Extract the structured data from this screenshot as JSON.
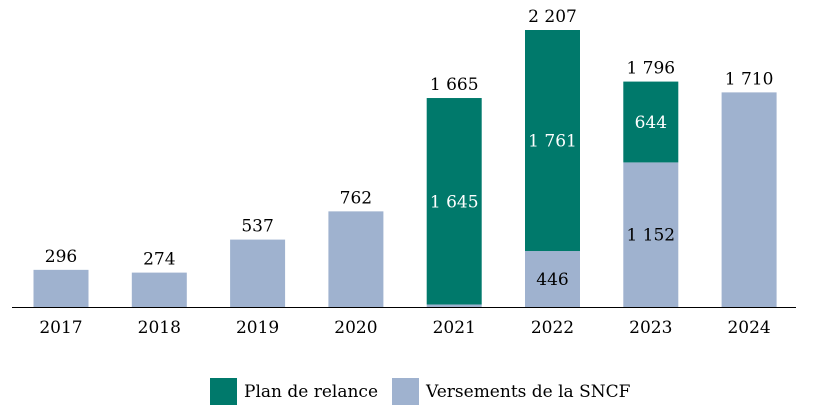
{
  "colors": {
    "plan_de_relance": "#00796b",
    "versements_sncf": "#9fb2cf"
  },
  "chart_data": {
    "type": "bar",
    "stacked": true,
    "categories": [
      "2017",
      "2018",
      "2019",
      "2020",
      "2021",
      "2022",
      "2023",
      "2024"
    ],
    "series": [
      {
        "name": "Versements de la SNCF",
        "values": [
          296,
          274,
          537,
          762,
          20,
          446,
          1152,
          1710
        ]
      },
      {
        "name": "Plan de relance",
        "values": [
          0,
          0,
          0,
          0,
          1645,
          1761,
          644,
          0
        ]
      }
    ],
    "totals": [
      296,
      274,
      537,
      762,
      1665,
      2207,
      1796,
      1710
    ],
    "total_labels": [
      "296",
      "274",
      "537",
      "762",
      "1 665",
      "2 207",
      "1 796",
      "1 710"
    ],
    "segment_labels": {
      "versements": [
        "",
        "",
        "",
        "",
        "",
        "446",
        "1 152",
        ""
      ],
      "plan": [
        "",
        "",
        "",
        "",
        "1 645",
        "1 761",
        "644",
        ""
      ]
    },
    "ylim": [
      0,
      2207
    ],
    "grid": false,
    "legend_position": "bottom"
  },
  "legend": {
    "items": [
      {
        "label": "Plan de relance",
        "color_key": "plan_de_relance"
      },
      {
        "label": "Versements de la SNCF",
        "color_key": "versements_sncf"
      }
    ]
  }
}
